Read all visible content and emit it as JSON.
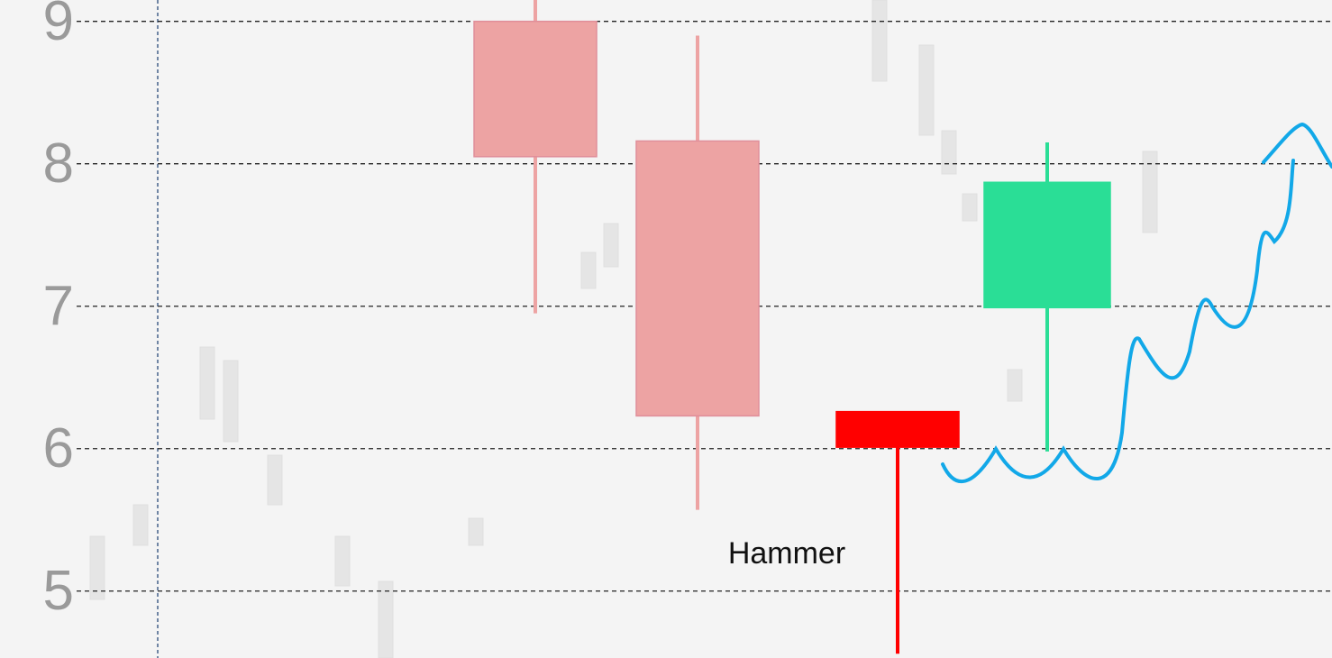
{
  "chart_data": {
    "type": "candlestick",
    "annotation": "Hammer",
    "ylim": [
      4.53,
      9.15
    ],
    "yticks": [
      5,
      6,
      7,
      8,
      9
    ],
    "grid": true,
    "candles": [
      {
        "open": 9.0,
        "high": 9.2,
        "low": 6.95,
        "close": 8.05,
        "color": "#eda3a3"
      },
      {
        "open": 8.16,
        "high": 8.9,
        "low": 5.57,
        "close": 6.23,
        "color": "#eda3a3"
      },
      {
        "open": 6.26,
        "high": 6.26,
        "low": 4.56,
        "close": 6.01,
        "color": "#ff0000"
      },
      {
        "open": 6.99,
        "high": 8.15,
        "low": 5.98,
        "close": 7.87,
        "color": "#2ade96"
      }
    ]
  }
}
